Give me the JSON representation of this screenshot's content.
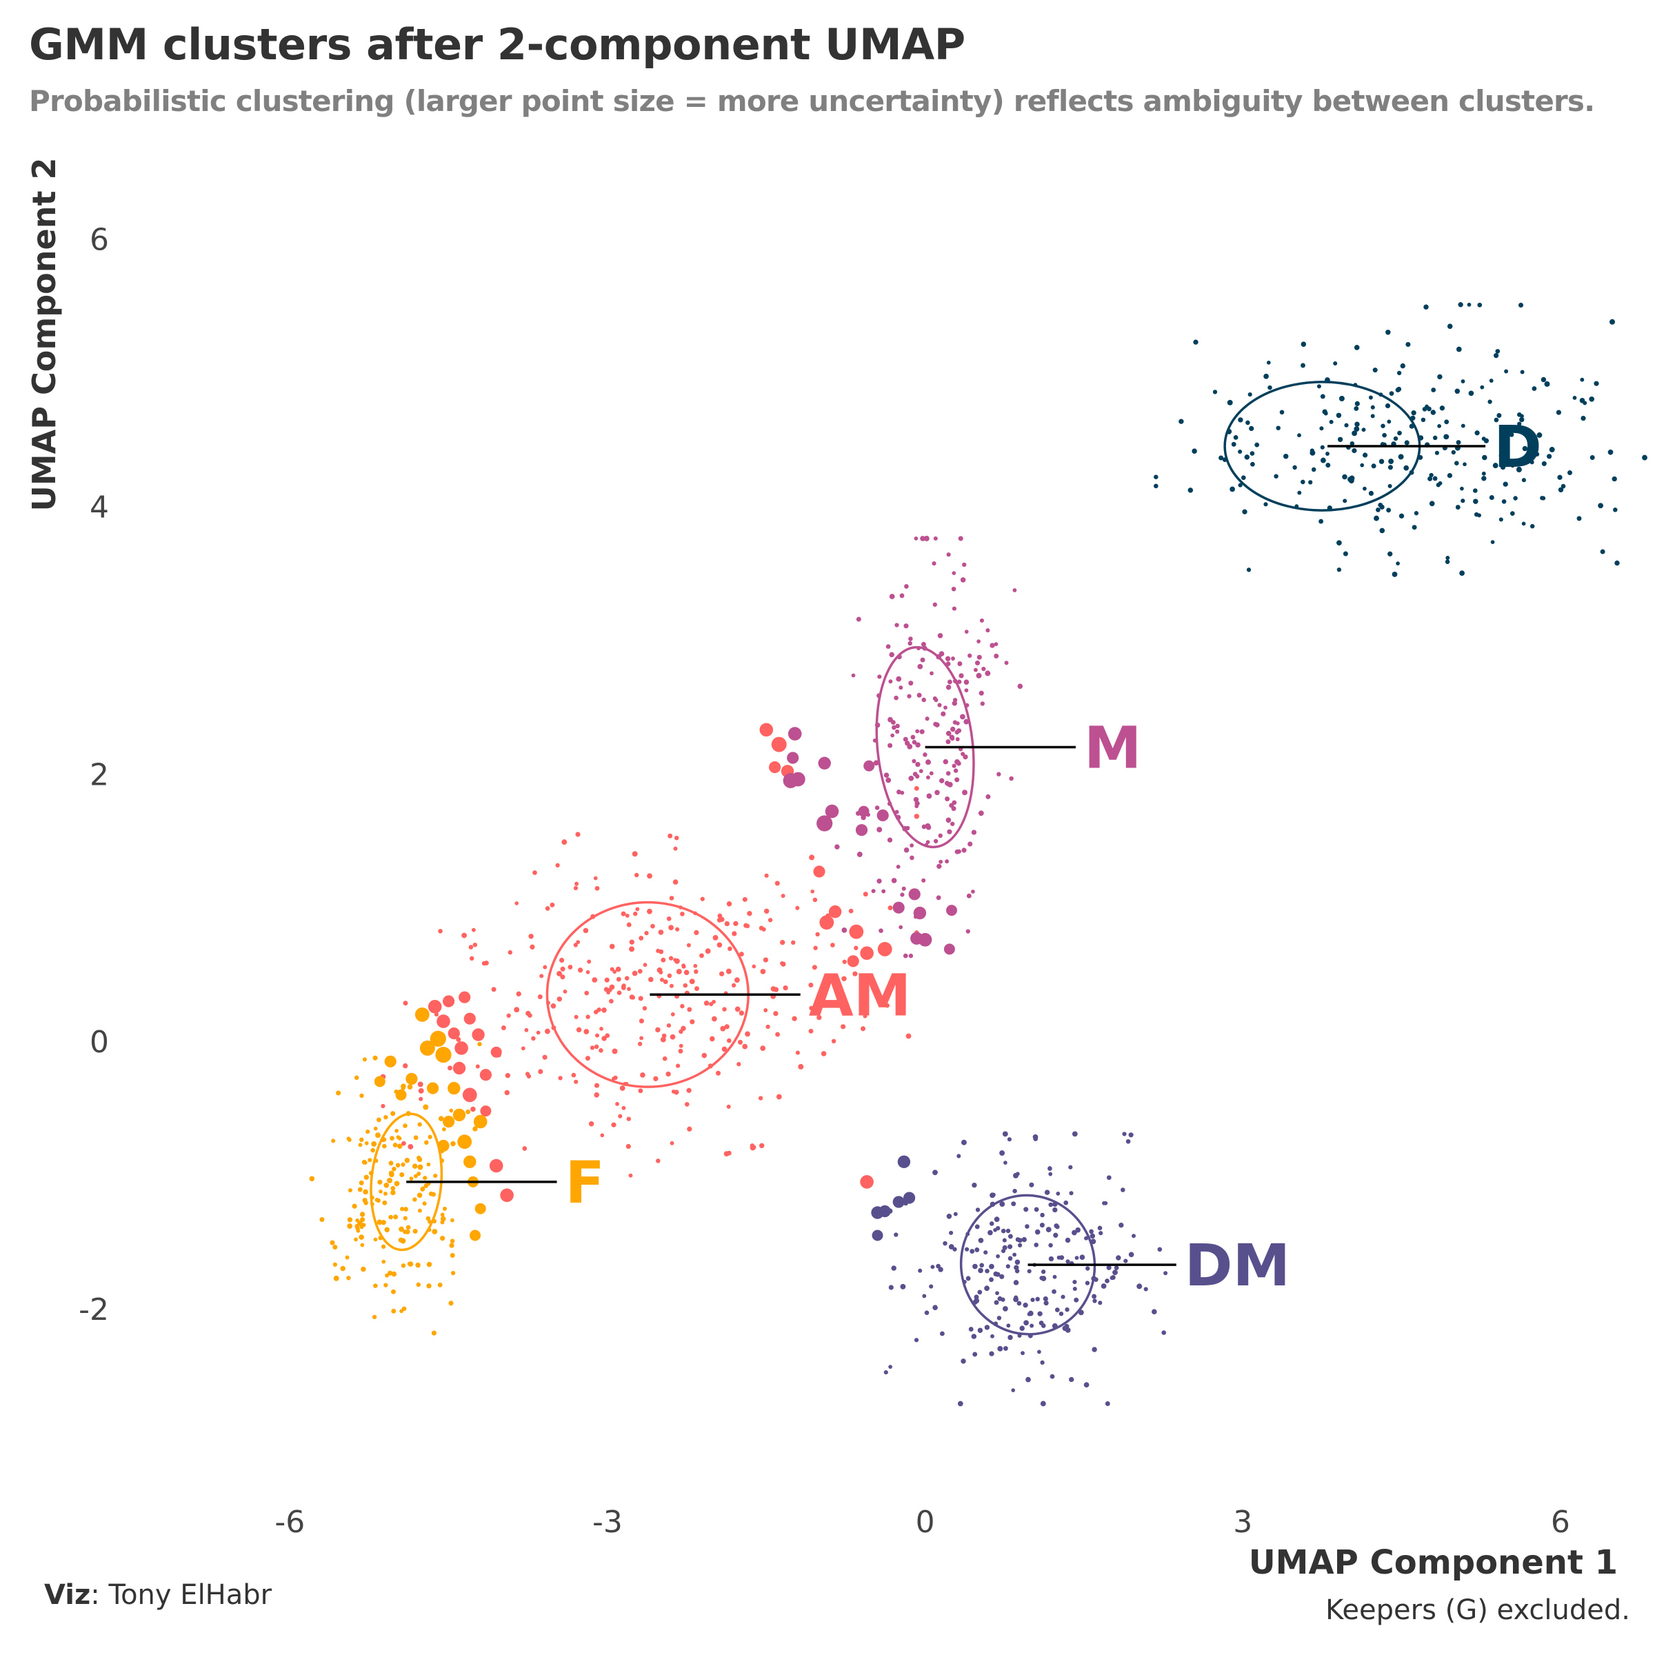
{
  "title": "GMM clusters after 2-component UMAP",
  "subtitle": "Probabilistic clustering (larger point size = more uncertainty) reflects ambiguity between clusters.",
  "caption": "Keepers (G) excluded.",
  "credit": {
    "label": "Viz",
    "name": ": Tony ElHabr"
  },
  "chart_data": {
    "type": "scatter",
    "xlabel": "UMAP Component 1",
    "ylabel": "UMAP Component 2",
    "xlim": [
      -7.5,
      6.6
    ],
    "ylim": [
      -3.35,
      6.6
    ],
    "xticks": [
      -6,
      -3,
      0,
      3,
      6
    ],
    "yticks": [
      -2,
      0,
      2,
      4,
      6
    ],
    "xtick_labels": [
      "-6",
      "-3",
      "0",
      "3",
      "6"
    ],
    "ytick_labels": [
      "-2",
      "0",
      "2",
      "4",
      "6"
    ],
    "grid": false,
    "legend": "none (direct labels)",
    "clusters": [
      {
        "name": "D",
        "color": "#003f5c",
        "center": [
          4.7,
          4.5
        ],
        "sd": [
          1.05,
          0.42
        ],
        "n": 260,
        "ellipse": {
          "cx": 3.75,
          "cy": 4.45,
          "rx": 0.92,
          "ry": 0.48,
          "angle": 0
        },
        "label_xy": [
          5.37,
          4.45
        ],
        "line_from": [
          3.8,
          4.45
        ]
      },
      {
        "name": "M",
        "color": "#bc5090",
        "center": [
          0.05,
          2.2
        ],
        "sd": [
          0.33,
          0.65
        ],
        "n": 210,
        "ellipse": {
          "cx": 0.0,
          "cy": 2.2,
          "rx": 0.45,
          "ry": 0.75,
          "angle": -6
        },
        "label_xy": [
          1.5,
          2.2
        ],
        "line_from": [
          0.0,
          2.2
        ]
      },
      {
        "name": "AM",
        "color": "#ff6361",
        "center": [
          -2.6,
          0.35
        ],
        "sd": [
          1.05,
          0.55
        ],
        "n": 330,
        "ellipse": {
          "cx": -2.62,
          "cy": 0.35,
          "rx": 0.95,
          "ry": 0.69,
          "angle": 0
        },
        "label_xy": [
          -1.1,
          0.35
        ],
        "line_from": [
          -2.6,
          0.35
        ]
      },
      {
        "name": "F",
        "color": "#ffa600",
        "center": [
          -5.0,
          -1.1
        ],
        "sd": [
          0.33,
          0.45
        ],
        "n": 180,
        "ellipse": {
          "cx": -4.9,
          "cy": -1.05,
          "rx": 0.33,
          "ry": 0.51,
          "angle": 5
        },
        "label_xy": [
          -3.4,
          -1.05
        ],
        "line_from": [
          -4.9,
          -1.05
        ]
      },
      {
        "name": "DM",
        "color": "#58508d",
        "center": [
          0.95,
          -1.7
        ],
        "sd": [
          0.55,
          0.42
        ],
        "n": 230,
        "ellipse": {
          "cx": 0.97,
          "cy": -1.67,
          "rx": 0.63,
          "ry": 0.52,
          "angle": -12
        },
        "label_xy": [
          2.45,
          -1.67
        ],
        "line_from": [
          0.97,
          -1.67
        ]
      }
    ],
    "uncertain_points": [
      {
        "x": -1.5,
        "y": 2.33,
        "cluster": "AM",
        "u": 0.4
      },
      {
        "x": -1.38,
        "y": 2.22,
        "cluster": "AM",
        "u": 0.5
      },
      {
        "x": -1.23,
        "y": 2.3,
        "cluster": "M",
        "u": 0.4
      },
      {
        "x": -1.25,
        "y": 2.12,
        "cluster": "M",
        "u": 0.3
      },
      {
        "x": -1.42,
        "y": 2.05,
        "cluster": "AM",
        "u": 0.3
      },
      {
        "x": -1.3,
        "y": 2.02,
        "cluster": "AM",
        "u": 0.35
      },
      {
        "x": -1.2,
        "y": 1.96,
        "cluster": "M",
        "u": 0.45
      },
      {
        "x": -1.27,
        "y": 1.95,
        "cluster": "M",
        "u": 0.5
      },
      {
        "x": -0.95,
        "y": 2.08,
        "cluster": "M",
        "u": 0.35
      },
      {
        "x": -0.88,
        "y": 1.72,
        "cluster": "M",
        "u": 0.4
      },
      {
        "x": -0.95,
        "y": 1.63,
        "cluster": "M",
        "u": 0.55
      },
      {
        "x": -0.6,
        "y": 1.58,
        "cluster": "M",
        "u": 0.3
      },
      {
        "x": -0.58,
        "y": 1.72,
        "cluster": "M",
        "u": 0.25
      },
      {
        "x": -0.4,
        "y": 1.69,
        "cluster": "M",
        "u": 0.3
      },
      {
        "x": -0.53,
        "y": 2.06,
        "cluster": "M",
        "u": 0.25
      },
      {
        "x": -1.0,
        "y": 1.27,
        "cluster": "AM",
        "u": 0.3
      },
      {
        "x": -0.85,
        "y": 0.97,
        "cluster": "AM",
        "u": 0.35
      },
      {
        "x": -0.93,
        "y": 0.89,
        "cluster": "AM",
        "u": 0.45
      },
      {
        "x": -0.65,
        "y": 0.82,
        "cluster": "AM",
        "u": 0.45
      },
      {
        "x": -0.55,
        "y": 0.66,
        "cluster": "AM",
        "u": 0.4
      },
      {
        "x": -0.38,
        "y": 0.69,
        "cluster": "AM",
        "u": 0.45
      },
      {
        "x": -0.68,
        "y": 0.6,
        "cluster": "AM",
        "u": 0.3
      },
      {
        "x": -0.25,
        "y": 1.0,
        "cluster": "M",
        "u": 0.3
      },
      {
        "x": -0.1,
        "y": 1.1,
        "cluster": "M",
        "u": 0.3
      },
      {
        "x": -0.05,
        "y": 0.96,
        "cluster": "M",
        "u": 0.35
      },
      {
        "x": -0.08,
        "y": 0.77,
        "cluster": "M",
        "u": 0.35
      },
      {
        "x": 0.0,
        "y": 0.76,
        "cluster": "M",
        "u": 0.4
      },
      {
        "x": 0.25,
        "y": 0.98,
        "cluster": "M",
        "u": 0.25
      },
      {
        "x": 0.23,
        "y": 0.69,
        "cluster": "M",
        "u": 0.25
      },
      {
        "x": -4.63,
        "y": 0.26,
        "cluster": "AM",
        "u": 0.4
      },
      {
        "x": -4.5,
        "y": 0.3,
        "cluster": "AM",
        "u": 0.3
      },
      {
        "x": -4.35,
        "y": 0.33,
        "cluster": "AM",
        "u": 0.3
      },
      {
        "x": -4.3,
        "y": 0.17,
        "cluster": "AM",
        "u": 0.3
      },
      {
        "x": -4.55,
        "y": 0.15,
        "cluster": "AM",
        "u": 0.4
      },
      {
        "x": -4.75,
        "y": 0.2,
        "cluster": "F",
        "u": 0.45
      },
      {
        "x": -4.6,
        "y": 0.02,
        "cluster": "F",
        "u": 0.55
      },
      {
        "x": -4.45,
        "y": 0.06,
        "cluster": "AM",
        "u": 0.3
      },
      {
        "x": -4.22,
        "y": 0.05,
        "cluster": "AM",
        "u": 0.35
      },
      {
        "x": -4.38,
        "y": -0.05,
        "cluster": "AM",
        "u": 0.4
      },
      {
        "x": -4.55,
        "y": -0.1,
        "cluster": "F",
        "u": 0.55
      },
      {
        "x": -4.7,
        "y": -0.05,
        "cluster": "F",
        "u": 0.5
      },
      {
        "x": -4.4,
        "y": -0.2,
        "cluster": "AM",
        "u": 0.35
      },
      {
        "x": -4.15,
        "y": -0.25,
        "cluster": "AM",
        "u": 0.3
      },
      {
        "x": -4.05,
        "y": -0.08,
        "cluster": "AM",
        "u": 0.25
      },
      {
        "x": -4.3,
        "y": -0.4,
        "cluster": "AM",
        "u": 0.45
      },
      {
        "x": -4.45,
        "y": -0.35,
        "cluster": "F",
        "u": 0.35
      },
      {
        "x": -4.65,
        "y": -0.35,
        "cluster": "F",
        "u": 0.3
      },
      {
        "x": -4.15,
        "y": -0.52,
        "cluster": "AM",
        "u": 0.25
      },
      {
        "x": -4.4,
        "y": -0.55,
        "cluster": "F",
        "u": 0.35
      },
      {
        "x": -4.2,
        "y": -0.6,
        "cluster": "F",
        "u": 0.4
      },
      {
        "x": -4.5,
        "y": -0.6,
        "cluster": "F",
        "u": 0.3
      },
      {
        "x": -4.35,
        "y": -0.75,
        "cluster": "F",
        "u": 0.45
      },
      {
        "x": -4.55,
        "y": -0.78,
        "cluster": "F",
        "u": 0.3
      },
      {
        "x": -4.3,
        "y": -0.9,
        "cluster": "F",
        "u": 0.35
      },
      {
        "x": -4.05,
        "y": -0.93,
        "cluster": "AM",
        "u": 0.4
      },
      {
        "x": -3.95,
        "y": -1.15,
        "cluster": "AM",
        "u": 0.4
      },
      {
        "x": -4.27,
        "y": -1.05,
        "cluster": "F",
        "u": 0.25
      },
      {
        "x": -4.2,
        "y": -1.25,
        "cluster": "F",
        "u": 0.25
      },
      {
        "x": -4.25,
        "y": -1.45,
        "cluster": "F",
        "u": 0.25
      },
      {
        "x": -5.05,
        "y": -0.15,
        "cluster": "F",
        "u": 0.3
      },
      {
        "x": -4.85,
        "y": -0.28,
        "cluster": "F",
        "u": 0.3
      },
      {
        "x": -4.95,
        "y": -0.4,
        "cluster": "F",
        "u": 0.25
      },
      {
        "x": -5.15,
        "y": -0.3,
        "cluster": "F",
        "u": 0.25
      },
      {
        "x": -0.55,
        "y": -1.05,
        "cluster": "AM",
        "u": 0.4
      },
      {
        "x": -0.2,
        "y": -0.9,
        "cluster": "DM",
        "u": 0.35
      },
      {
        "x": -0.45,
        "y": -1.28,
        "cluster": "DM",
        "u": 0.35
      },
      {
        "x": -0.38,
        "y": -1.27,
        "cluster": "DM",
        "u": 0.3
      },
      {
        "x": -0.25,
        "y": -1.2,
        "cluster": "DM",
        "u": 0.3
      },
      {
        "x": -0.15,
        "y": -1.17,
        "cluster": "DM",
        "u": 0.3
      },
      {
        "x": -0.45,
        "y": -1.45,
        "cluster": "DM",
        "u": 0.25
      }
    ]
  }
}
